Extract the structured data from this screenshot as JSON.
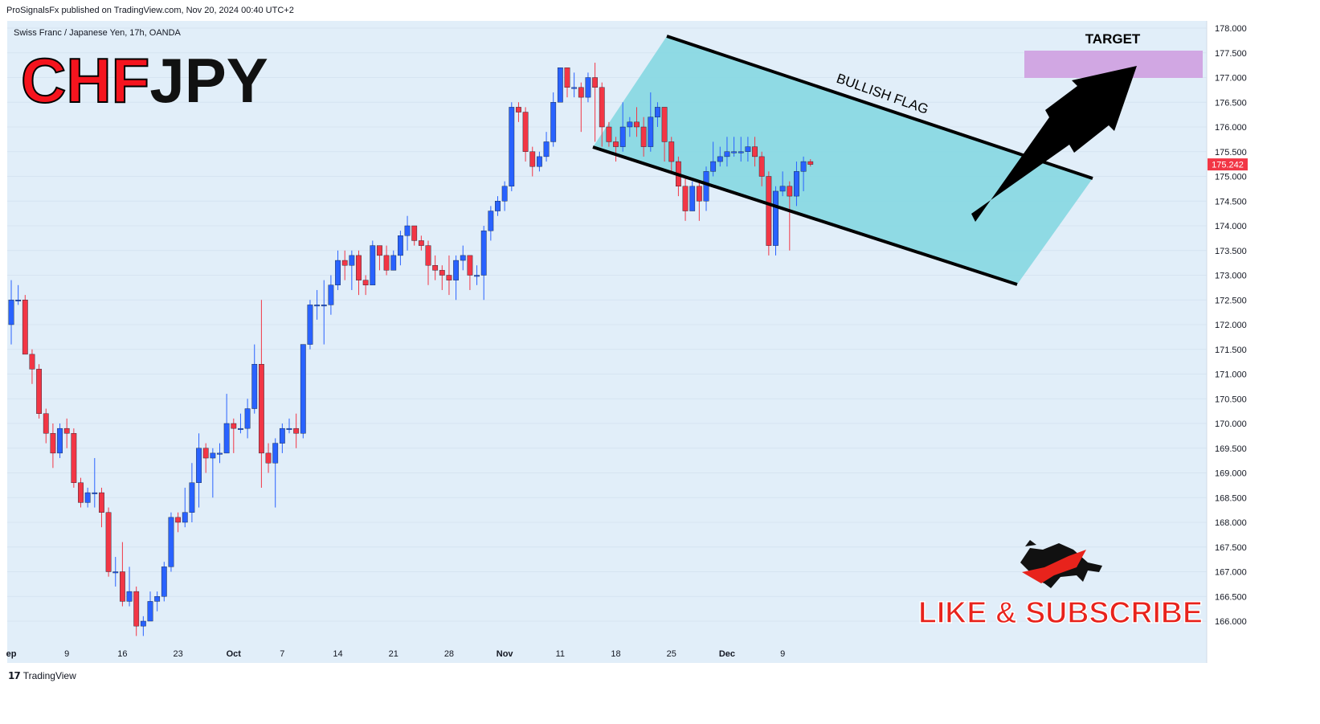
{
  "header": {
    "published": "ProSignalsFx published on TradingView.com, Nov 20, 2024 00:40 UTC+2"
  },
  "symbol": {
    "description": "Swiss Franc / Japanese Yen, 17h, OANDA",
    "base": "CHF",
    "quote": "JPY"
  },
  "annotations": {
    "flag_label": "BULLISH FLAG",
    "target_label": "TARGET",
    "cta": "LIKE & SUBSCRIBE"
  },
  "footer": {
    "brand": "TradingView"
  },
  "colors": {
    "bull": "#2962ff",
    "bear": "#f23645",
    "channel_fill": "#8ad8e3",
    "target_fill": "#d1a7e3",
    "chart_bg": "#e1eef9",
    "price_tag": "#f23645",
    "title_red": "#f5141e"
  },
  "chart_data": {
    "type": "candlestick",
    "timeframe": "17h",
    "y_ticks": [
      166.0,
      166.5,
      167.0,
      167.5,
      168.0,
      168.5,
      169.0,
      169.5,
      170.0,
      170.5,
      171.0,
      171.5,
      172.0,
      172.5,
      173.0,
      173.5,
      174.0,
      174.5,
      175.0,
      175.5,
      176.0,
      176.5,
      177.0,
      177.5,
      178.0
    ],
    "y_tick_labels": [
      "166.000",
      "166.500",
      "167.000",
      "167.500",
      "168.000",
      "168.500",
      "169.000",
      "169.500",
      "170.000",
      "170.500",
      "171.000",
      "171.500",
      "172.000",
      "172.500",
      "173.000",
      "173.500",
      "174.000",
      "174.500",
      "175.000",
      "175.500",
      "176.000",
      "176.500",
      "177.000",
      "177.500",
      "178.000"
    ],
    "ylim": [
      165.75,
      178.1
    ],
    "x_ticks": [
      {
        "label": "ep",
        "bar": 0,
        "bold": true
      },
      {
        "label": "9",
        "bar": 8
      },
      {
        "label": "16",
        "bar": 16
      },
      {
        "label": "23",
        "bar": 24
      },
      {
        "label": "Oct",
        "bar": 32,
        "bold": true
      },
      {
        "label": "7",
        "bar": 39
      },
      {
        "label": "14",
        "bar": 47
      },
      {
        "label": "21",
        "bar": 55
      },
      {
        "label": "28",
        "bar": 63
      },
      {
        "label": "Nov",
        "bar": 71,
        "bold": true
      },
      {
        "label": "11",
        "bar": 79
      },
      {
        "label": "18",
        "bar": 87
      },
      {
        "label": "25",
        "bar": 95
      },
      {
        "label": "Dec",
        "bar": 103,
        "bold": true
      },
      {
        "label": "9",
        "bar": 111
      }
    ],
    "last_price": 175.242,
    "last_price_label": "175.242",
    "candles": [
      [
        172.0,
        172.5,
        171.6,
        172.9
      ],
      [
        172.5,
        172.5,
        172.4,
        172.8
      ],
      [
        172.5,
        171.4,
        171.4,
        172.6
      ],
      [
        171.4,
        171.1,
        170.8,
        171.5
      ],
      [
        171.1,
        170.2,
        170.1,
        171.2
      ],
      [
        170.2,
        169.8,
        169.6,
        170.3
      ],
      [
        169.8,
        169.4,
        169.1,
        170.0
      ],
      [
        169.4,
        169.9,
        169.3,
        170.0
      ],
      [
        169.9,
        169.8,
        169.5,
        170.1
      ],
      [
        169.8,
        168.8,
        168.7,
        169.9
      ],
      [
        168.8,
        168.4,
        168.3,
        168.9
      ],
      [
        168.4,
        168.6,
        168.3,
        168.7
      ],
      [
        168.6,
        168.6,
        168.3,
        169.3
      ],
      [
        168.6,
        168.2,
        167.9,
        168.7
      ],
      [
        168.2,
        167.0,
        166.9,
        168.3
      ],
      [
        167.0,
        167.0,
        166.7,
        167.3
      ],
      [
        167.0,
        166.4,
        166.3,
        167.6
      ],
      [
        166.4,
        166.6,
        166.3,
        167.1
      ],
      [
        166.6,
        165.9,
        165.7,
        166.7
      ],
      [
        165.9,
        166.0,
        165.7,
        166.1
      ],
      [
        166.0,
        166.4,
        166.0,
        166.6
      ],
      [
        166.4,
        166.5,
        166.2,
        166.6
      ],
      [
        166.5,
        167.1,
        166.4,
        167.2
      ],
      [
        167.1,
        168.1,
        167.0,
        168.2
      ],
      [
        168.1,
        168.0,
        167.8,
        168.2
      ],
      [
        168.0,
        168.2,
        167.9,
        168.7
      ],
      [
        168.2,
        168.8,
        168.0,
        169.2
      ],
      [
        168.8,
        169.5,
        168.3,
        169.8
      ],
      [
        169.5,
        169.3,
        169.0,
        169.6
      ],
      [
        169.3,
        169.4,
        168.5,
        169.5
      ],
      [
        169.4,
        169.4,
        169.2,
        169.6
      ],
      [
        169.4,
        170.0,
        169.4,
        170.6
      ],
      [
        170.0,
        169.9,
        169.4,
        170.1
      ],
      [
        169.9,
        169.9,
        169.8,
        170.2
      ],
      [
        169.9,
        170.3,
        169.7,
        170.5
      ],
      [
        170.3,
        171.2,
        170.2,
        171.6
      ],
      [
        171.2,
        169.4,
        168.7,
        172.5
      ],
      [
        169.4,
        169.2,
        169.0,
        169.6
      ],
      [
        169.2,
        169.6,
        168.3,
        169.7
      ],
      [
        169.6,
        169.9,
        169.4,
        170.0
      ],
      [
        169.9,
        169.9,
        169.8,
        170.1
      ],
      [
        169.9,
        169.8,
        169.5,
        170.2
      ],
      [
        169.8,
        171.6,
        169.7,
        171.6
      ],
      [
        171.6,
        172.4,
        171.5,
        172.5
      ],
      [
        172.4,
        172.4,
        172.1,
        172.7
      ],
      [
        172.4,
        172.4,
        171.6,
        172.9
      ],
      [
        172.4,
        172.8,
        172.2,
        173.0
      ],
      [
        172.8,
        173.3,
        172.7,
        173.5
      ],
      [
        173.3,
        173.2,
        172.9,
        173.5
      ],
      [
        173.2,
        173.4,
        172.7,
        173.5
      ],
      [
        173.4,
        172.9,
        172.6,
        173.5
      ],
      [
        172.9,
        172.8,
        172.6,
        173.0
      ],
      [
        172.8,
        173.6,
        172.9,
        173.7
      ],
      [
        173.6,
        173.4,
        173.1,
        173.6
      ],
      [
        173.4,
        173.1,
        173.0,
        173.6
      ],
      [
        173.1,
        173.4,
        173.1,
        173.5
      ],
      [
        173.4,
        173.8,
        173.2,
        173.9
      ],
      [
        173.8,
        174.0,
        173.5,
        174.2
      ],
      [
        174.0,
        173.7,
        173.6,
        174.0
      ],
      [
        173.7,
        173.6,
        173.5,
        173.8
      ],
      [
        173.6,
        173.2,
        172.8,
        173.7
      ],
      [
        173.2,
        173.1,
        172.9,
        173.4
      ],
      [
        173.1,
        173.0,
        172.7,
        173.2
      ],
      [
        173.0,
        172.9,
        172.6,
        173.4
      ],
      [
        172.9,
        173.3,
        172.5,
        173.4
      ],
      [
        173.3,
        173.4,
        173.1,
        173.6
      ],
      [
        173.4,
        173.0,
        172.7,
        173.4
      ],
      [
        173.0,
        173.0,
        172.8,
        173.2
      ],
      [
        173.0,
        173.9,
        172.5,
        174.0
      ],
      [
        173.9,
        174.3,
        173.7,
        174.4
      ],
      [
        174.3,
        174.5,
        174.2,
        174.6
      ],
      [
        174.5,
        174.8,
        174.3,
        174.9
      ],
      [
        174.8,
        176.4,
        174.7,
        176.5
      ],
      [
        176.4,
        176.3,
        176.1,
        176.5
      ],
      [
        176.3,
        175.5,
        175.3,
        176.4
      ],
      [
        175.5,
        175.2,
        175.0,
        175.6
      ],
      [
        175.2,
        175.4,
        175.1,
        175.5
      ],
      [
        175.4,
        175.7,
        175.3,
        175.9
      ],
      [
        175.7,
        176.5,
        175.6,
        176.7
      ],
      [
        176.5,
        177.2,
        176.6,
        177.2
      ],
      [
        177.2,
        176.8,
        176.6,
        177.2
      ],
      [
        176.8,
        176.8,
        176.6,
        177.1
      ],
      [
        176.8,
        176.6,
        175.9,
        176.9
      ],
      [
        176.6,
        177.0,
        176.5,
        177.1
      ],
      [
        177.0,
        176.8,
        175.7,
        177.3
      ],
      [
        176.8,
        176.0,
        175.6,
        176.9
      ],
      [
        176.0,
        175.7,
        175.6,
        176.1
      ],
      [
        175.7,
        175.6,
        175.3,
        175.8
      ],
      [
        175.6,
        176.0,
        175.5,
        176.5
      ],
      [
        176.0,
        176.1,
        175.8,
        176.2
      ],
      [
        176.1,
        176.0,
        175.8,
        176.4
      ],
      [
        176.0,
        175.6,
        175.4,
        176.2
      ],
      [
        175.6,
        176.2,
        175.5,
        176.7
      ],
      [
        176.2,
        176.4,
        176.0,
        176.5
      ],
      [
        176.4,
        175.7,
        175.3,
        176.4
      ],
      [
        175.7,
        175.3,
        175.1,
        175.8
      ],
      [
        175.3,
        174.8,
        174.6,
        175.4
      ],
      [
        174.8,
        174.3,
        174.1,
        175.0
      ],
      [
        174.3,
        174.8,
        174.3,
        174.9
      ],
      [
        174.8,
        174.5,
        174.1,
        174.9
      ],
      [
        174.5,
        175.1,
        174.3,
        175.2
      ],
      [
        175.1,
        175.3,
        175.0,
        175.7
      ],
      [
        175.3,
        175.4,
        175.2,
        175.6
      ],
      [
        175.4,
        175.5,
        175.2,
        175.8
      ],
      [
        175.5,
        175.5,
        175.4,
        175.8
      ],
      [
        175.5,
        175.5,
        175.3,
        175.8
      ],
      [
        175.5,
        175.6,
        175.3,
        175.8
      ],
      [
        175.6,
        175.4,
        175.2,
        175.8
      ],
      [
        175.4,
        175.0,
        174.8,
        175.5
      ],
      [
        175.0,
        173.6,
        173.4,
        175.1
      ],
      [
        173.6,
        174.7,
        173.4,
        174.8
      ],
      [
        174.7,
        174.8,
        174.6,
        175.1
      ],
      [
        174.8,
        174.6,
        173.5,
        174.9
      ],
      [
        174.6,
        175.1,
        174.4,
        175.3
      ],
      [
        175.1,
        175.3,
        174.7,
        175.4
      ],
      [
        175.3,
        175.242,
        175.2,
        175.35
      ]
    ]
  }
}
